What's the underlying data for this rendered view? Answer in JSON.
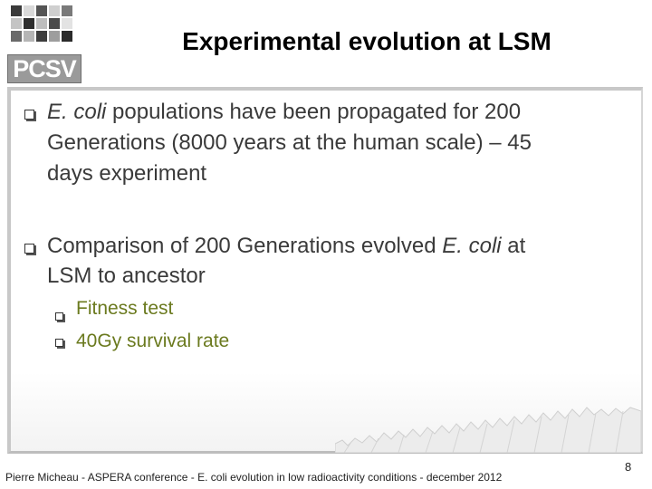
{
  "logo": {
    "text": "PCSV"
  },
  "slide": {
    "title": "Experimental evolution at LSM",
    "bullets": [
      {
        "em": "E. coli",
        "line1_rest": " populations have been propagated for 200",
        "line2": "Generations (8000 years at the human scale) – 45",
        "line3": "days experiment"
      },
      {
        "line1_pre": "Comparison of 200 Generations evolved ",
        "em": "E. coli",
        "line1_post": " at",
        "line2": "LSM to ancestor",
        "subitems": [
          "Fitness test",
          "40Gy survival rate"
        ]
      }
    ]
  },
  "footer": {
    "text": "Pierre Micheau  - ASPERA conference - E. coli evolution in low radioactivity conditions - december 2012",
    "page": "8"
  },
  "colors": {
    "subitem_text": "#6b7a1f",
    "body_text": "#3a3a3a",
    "frame": "#c8c8c8"
  }
}
